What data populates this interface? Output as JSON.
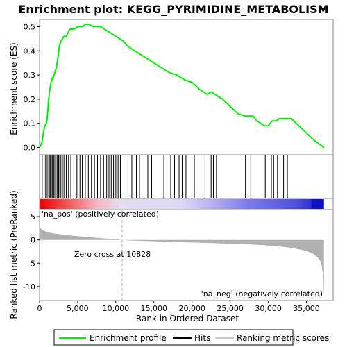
{
  "title": "Enrichment plot: KEGG_PYRIMIDINE_METABOLISM",
  "colors": {
    "enrichment_line": "#00ee00",
    "hits": "#000000",
    "metric_fill": "#b0b0b0",
    "pos_label": "#cc0000",
    "neg_label": "#0000cc",
    "zero_line": "#aaaaaa"
  },
  "chart_data": [
    {
      "type": "line",
      "name": "enrichment-profile",
      "ylabel": "Enrichment score (ES)",
      "xlim": [
        0,
        38500
      ],
      "ylim": [
        -0.03,
        0.53
      ],
      "yticks": [
        0.0,
        0.1,
        0.2,
        0.3,
        0.4,
        0.5
      ],
      "ytick_labels": [
        "0.0",
        "0.1",
        "0.2",
        "0.3",
        "0.4",
        "0.5"
      ],
      "series": [
        {
          "name": "Enrichment profile",
          "x": [
            0,
            300,
            500,
            700,
            900,
            1000,
            1100,
            1200,
            1300,
            1400,
            1500,
            1600,
            1700,
            1800,
            1900,
            2000,
            2200,
            2400,
            2600,
            2800,
            3000,
            3200,
            3500,
            3800,
            4000,
            4300,
            4600,
            5000,
            5400,
            5700,
            6000,
            6500,
            7000,
            7500,
            8000,
            8500,
            9000,
            9500,
            10000,
            10500,
            11000,
            11500,
            12000,
            13000,
            14000,
            15000,
            16000,
            17000,
            18000,
            19000,
            20000,
            21000,
            22000,
            22500,
            23000,
            23500,
            24000,
            25000,
            26000,
            27000,
            27500,
            28000,
            28500,
            29000,
            29500,
            30000,
            30500,
            31000,
            31500,
            32000,
            33000,
            34000,
            35000,
            36000,
            37300
          ],
          "y": [
            0.0,
            0.02,
            0.06,
            0.09,
            0.1,
            0.12,
            0.16,
            0.2,
            0.23,
            0.25,
            0.27,
            0.28,
            0.29,
            0.29,
            0.3,
            0.31,
            0.33,
            0.37,
            0.42,
            0.44,
            0.45,
            0.46,
            0.46,
            0.48,
            0.49,
            0.49,
            0.49,
            0.5,
            0.5,
            0.5,
            0.51,
            0.51,
            0.5,
            0.5,
            0.5,
            0.49,
            0.48,
            0.47,
            0.46,
            0.45,
            0.44,
            0.42,
            0.41,
            0.39,
            0.37,
            0.35,
            0.33,
            0.31,
            0.3,
            0.28,
            0.27,
            0.24,
            0.22,
            0.23,
            0.22,
            0.21,
            0.2,
            0.17,
            0.14,
            0.13,
            0.13,
            0.13,
            0.11,
            0.1,
            0.09,
            0.09,
            0.11,
            0.11,
            0.12,
            0.12,
            0.12,
            0.09,
            0.06,
            0.03,
            0.0
          ]
        }
      ]
    },
    {
      "type": "scatter",
      "name": "hits",
      "xlim": [
        0,
        38500
      ],
      "x": [
        350,
        600,
        800,
        1000,
        1200,
        1350,
        1450,
        1550,
        1700,
        1850,
        2000,
        2150,
        2300,
        2500,
        2650,
        2800,
        3000,
        3200,
        3500,
        3800,
        4100,
        4500,
        4900,
        5300,
        5600,
        6000,
        6400,
        6800,
        7200,
        7600,
        8000,
        8400,
        8800,
        9100,
        9400,
        9700,
        10000,
        10300,
        10600,
        11600,
        12100,
        12700,
        13100,
        14200,
        14700,
        16300,
        17200,
        17700,
        18300,
        18700,
        19200,
        20300,
        21700,
        22500,
        22800,
        23200,
        27000,
        27700,
        29600,
        30400,
        30700,
        31200,
        32000,
        32500
      ]
    },
    {
      "type": "area",
      "name": "ranked-list-metric",
      "xlabel": "Rank in Ordered Dataset",
      "ylabel": "Ranked list metric (PreRanked)",
      "xlim": [
        0,
        38500
      ],
      "ylim": [
        -13,
        6.5
      ],
      "xticks": [
        0,
        5000,
        10000,
        15000,
        20000,
        25000,
        30000,
        35000
      ],
      "xtick_labels": [
        "0",
        "5,000",
        "10,000",
        "15,000",
        "20,000",
        "25,000",
        "30,000",
        "35,000"
      ],
      "yticks": [
        5,
        0,
        -5,
        -10
      ],
      "ytick_labels": [
        "5",
        "0",
        "-5",
        "-10"
      ],
      "x": [
        0,
        100,
        300,
        600,
        1000,
        1500,
        2000,
        3000,
        4000,
        5000,
        6000,
        7000,
        8000,
        9000,
        10000,
        10828,
        12000,
        14000,
        16000,
        18000,
        20000,
        22000,
        24000,
        26000,
        28000,
        30000,
        32000,
        33000,
        34000,
        35000,
        35500,
        36000,
        36500,
        36800,
        37000,
        37200,
        37300
      ],
      "values": [
        3.1,
        2.6,
        2.2,
        1.9,
        1.7,
        1.5,
        1.35,
        1.15,
        0.95,
        0.8,
        0.65,
        0.5,
        0.38,
        0.25,
        0.12,
        0.0,
        -0.12,
        -0.25,
        -0.35,
        -0.45,
        -0.55,
        -0.65,
        -0.75,
        -0.85,
        -1.0,
        -1.2,
        -1.5,
        -1.7,
        -2.0,
        -2.4,
        -2.7,
        -3.1,
        -3.8,
        -4.5,
        -5.5,
        -8.0,
        -12.0
      ],
      "zero_cross_label": "Zero cross at 10828",
      "zero_cross_x": 10828,
      "pos_label": "'na_pos' (positively correlated)",
      "neg_label": "'na_neg' (negatively correlated)"
    }
  ],
  "legend": {
    "items": [
      {
        "label": "Enrichment profile",
        "color": "#00ee00"
      },
      {
        "label": "Hits",
        "color": "#000000"
      },
      {
        "label": "Ranking metric scores",
        "color": "#cccccc"
      }
    ]
  }
}
